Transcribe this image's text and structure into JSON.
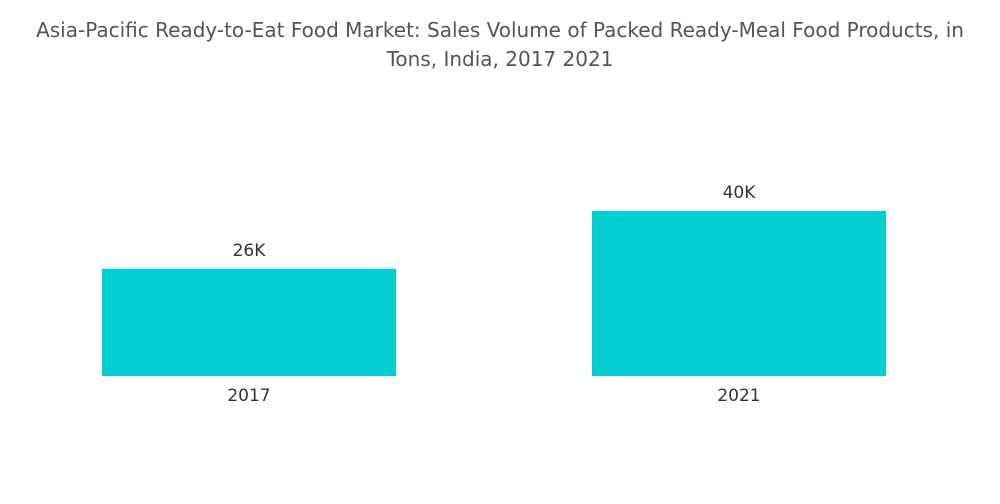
{
  "chart_data": {
    "type": "bar",
    "title": "Asia-Pacific Ready-to-Eat Food Market: Sales Volume of Packed Ready-Meal Food Products, in Tons, India, 2017 2021",
    "categories": [
      "2017",
      "2021"
    ],
    "values": [
      26000,
      40000
    ],
    "value_labels": [
      "26K",
      "40K"
    ],
    "color": "#00ced1"
  }
}
